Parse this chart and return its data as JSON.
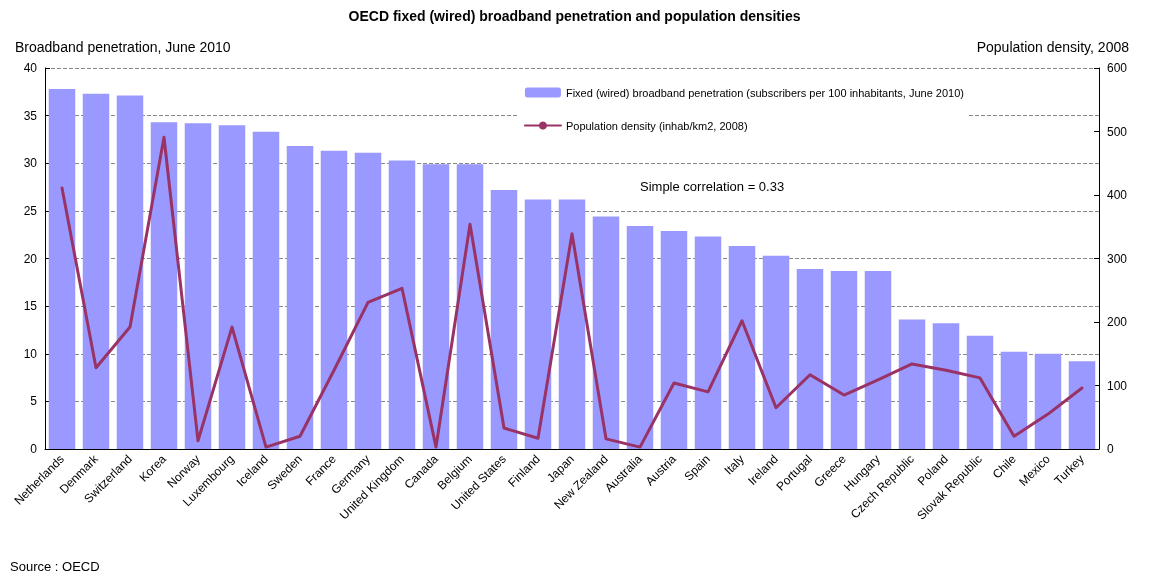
{
  "chart_data": {
    "type": "bar",
    "title": "OECD fixed (wired) broadband penetration and population densities",
    "ylabel": "Broadband penetration, June 2010",
    "y2label": "Population density, 2008",
    "categories": [
      "Netherlands",
      "Denmark",
      "Switzerland",
      "Korea",
      "Norway",
      "Luxembourg",
      "Iceland",
      "Sweden",
      "France",
      "Germany",
      "United Kingdom",
      "Canada",
      "Belgium",
      "United States",
      "Finland",
      "Japan",
      "New Zealand",
      "Australia",
      "Austria",
      "Spain",
      "Italy",
      "Ireland",
      "Portugal",
      "Greece",
      "Hungary",
      "Czech Republic",
      "Poland",
      "Slovak Republic",
      "Chile",
      "Mexico",
      "Turkey"
    ],
    "series": [
      {
        "name": "Fixed (wired) broadband penetration (subscribers per 100 inhabitants, June 2010)",
        "color": "#9999ff",
        "values": [
          37.8,
          37.3,
          37.1,
          34.3,
          34.2,
          34.0,
          33.3,
          31.8,
          31.3,
          31.1,
          30.3,
          29.9,
          29.9,
          27.2,
          26.2,
          26.2,
          24.4,
          23.4,
          22.9,
          22.3,
          21.3,
          20.3,
          18.9,
          18.7,
          18.7,
          13.6,
          13.2,
          11.9,
          10.2,
          10.0,
          9.2
        ]
      },
      {
        "name": "Population density (inhab/km2, 2008)",
        "type": "line",
        "axis": "y2",
        "color": "#993366",
        "values": [
          411,
          128,
          192,
          491,
          13,
          192,
          3,
          20,
          124,
          231,
          253,
          3,
          354,
          33,
          17,
          339,
          16,
          3,
          104,
          90,
          202,
          65,
          117,
          85,
          109,
          134,
          124,
          112,
          20,
          55,
          96
        ]
      }
    ],
    "ylim": [
      0,
      40
    ],
    "yticks": [
      0,
      5,
      10,
      15,
      20,
      25,
      30,
      35,
      40
    ],
    "y2lim": [
      0,
      600
    ],
    "y2ticks": [
      0,
      100,
      200,
      300,
      400,
      500,
      600
    ],
    "grid": "y",
    "legend": "top right",
    "marker": "none",
    "line_style": "solid",
    "annotations": [
      "Simple correlation = 0.33",
      "Source : OECD"
    ]
  }
}
